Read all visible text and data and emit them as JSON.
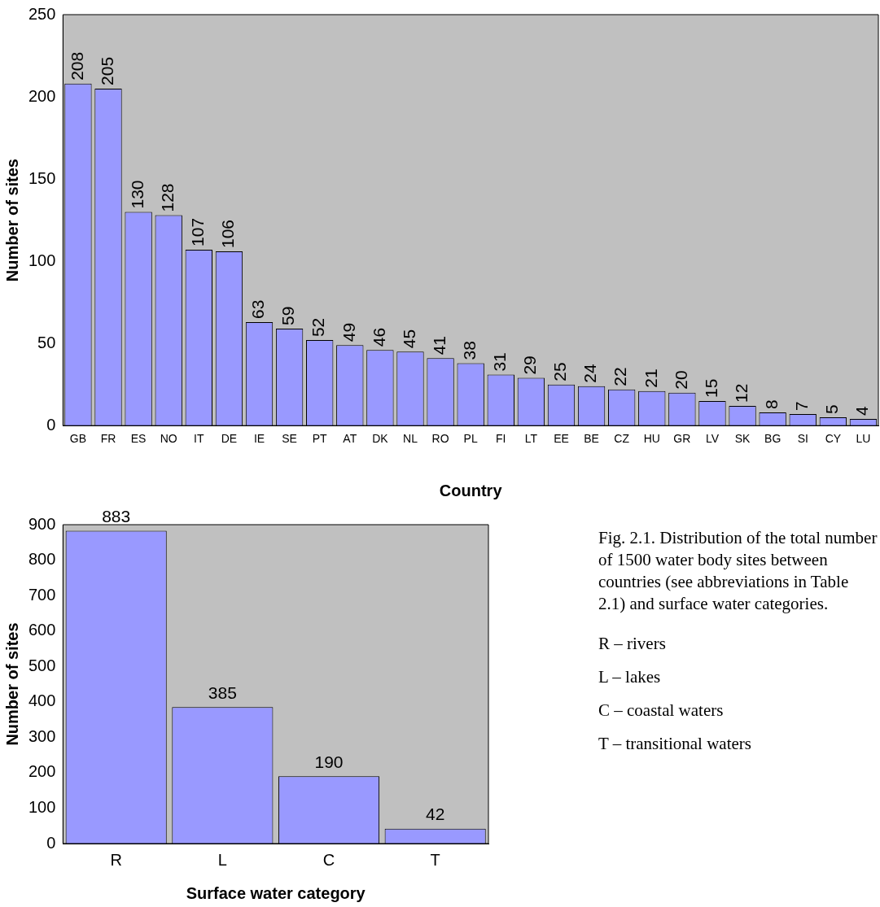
{
  "chart_data": [
    {
      "type": "bar",
      "xlabel": "Country",
      "ylabel": "Number of sites",
      "categories": [
        "GB",
        "FR",
        "ES",
        "NO",
        "IT",
        "DE",
        "IE",
        "SE",
        "PT",
        "AT",
        "DK",
        "NL",
        "RO",
        "PL",
        "FI",
        "LT",
        "EE",
        "BE",
        "CZ",
        "HU",
        "GR",
        "LV",
        "SK",
        "BG",
        "SI",
        "CY",
        "LU"
      ],
      "values": [
        208,
        205,
        130,
        128,
        107,
        106,
        63,
        59,
        52,
        49,
        46,
        45,
        41,
        38,
        31,
        29,
        25,
        24,
        22,
        21,
        20,
        15,
        12,
        8,
        7,
        5,
        4
      ],
      "color": "#9999ff",
      "ylim": [
        0,
        250
      ],
      "yticks": [
        0,
        50,
        100,
        150,
        200,
        250
      ],
      "grid": false,
      "legend": false,
      "data_labels": true
    },
    {
      "type": "bar",
      "xlabel": "Surface water category",
      "ylabel": "Number of sites",
      "categories": [
        "R",
        "L",
        "C",
        "T"
      ],
      "values": [
        883,
        385,
        190,
        42
      ],
      "color": "#9999ff",
      "ylim": [
        0,
        900
      ],
      "yticks": [
        0,
        100,
        200,
        300,
        400,
        500,
        600,
        700,
        800,
        900
      ],
      "grid": false,
      "legend": false,
      "data_labels": true,
      "annotations": [
        "Fig. 2.1. Distribution of the total number of 1500 water body sites between countries (see abbreviations in Table 2.1) and surface water categories.",
        "R – rivers",
        "L – lakes",
        "C – coastal waters",
        "T – transitional waters"
      ]
    }
  ]
}
